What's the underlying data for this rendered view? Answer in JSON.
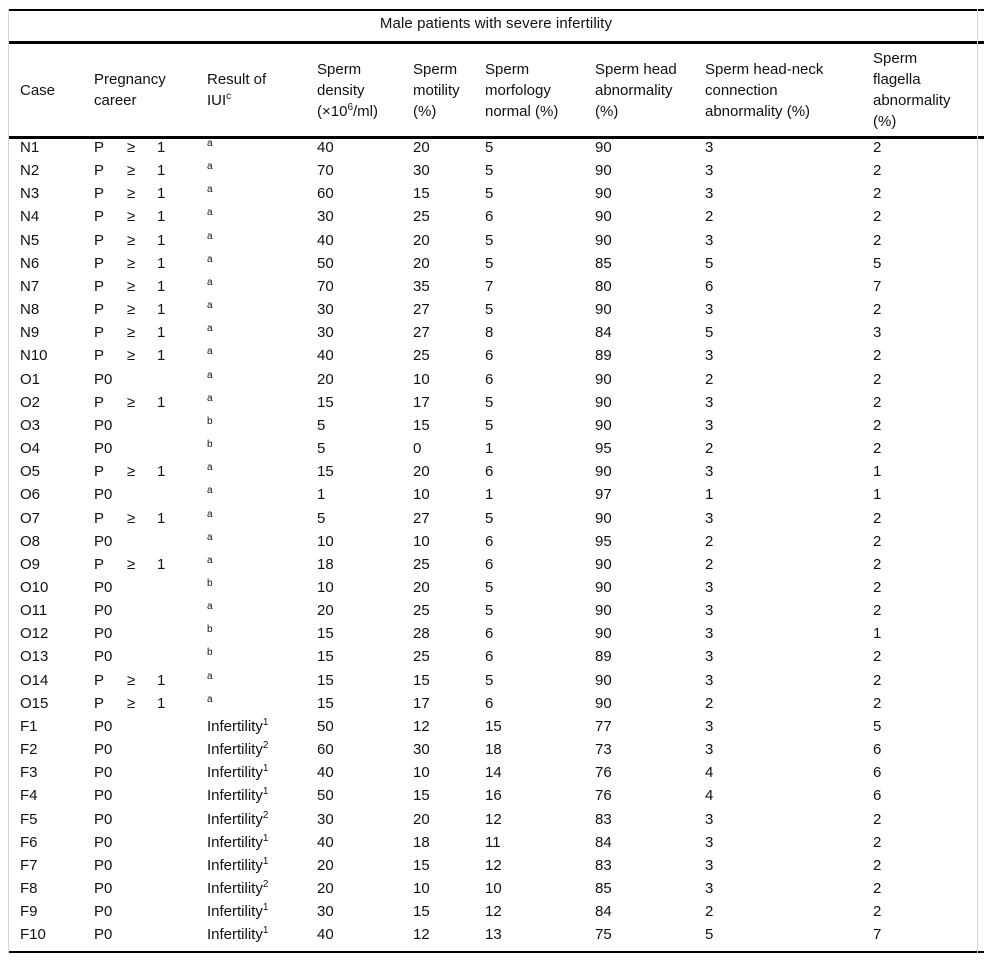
{
  "table": {
    "title": "Male patients with severe infertility",
    "headers": [
      {
        "lines": [
          {
            "t": "Case"
          }
        ]
      },
      {
        "lines": [
          {
            "t": "Pregnancy"
          },
          {
            "t": "career"
          }
        ]
      },
      {
        "lines": [
          {
            "t": "Result of"
          },
          {
            "t": "IUI",
            "sup": "c"
          }
        ]
      },
      {
        "lines": [
          {
            "t": "Sperm"
          },
          {
            "t": "density"
          },
          {
            "t": "(×10",
            "sup": "6",
            "t2": "/ml)"
          }
        ]
      },
      {
        "lines": [
          {
            "t": "Sperm"
          },
          {
            "t": "motility"
          },
          {
            "t": "(%)"
          }
        ]
      },
      {
        "lines": [
          {
            "t": "Sperm"
          },
          {
            "t": "morfology"
          },
          {
            "t": "normal (%)"
          }
        ]
      },
      {
        "lines": [
          {
            "t": "Sperm head"
          },
          {
            "t": "abnormality"
          },
          {
            "t": "(%)"
          }
        ]
      },
      {
        "lines": [
          {
            "t": "Sperm head-neck"
          },
          {
            "t": "connection"
          },
          {
            "t": "abnormality (%)"
          }
        ]
      },
      {
        "lines": [
          {
            "t": "Sperm"
          },
          {
            "t": "flagella"
          },
          {
            "t": "abnormality"
          },
          {
            "t": "(%)"
          }
        ]
      }
    ],
    "rows": [
      {
        "case": "N1",
        "pregnancy": [
          "P",
          "≥",
          "1"
        ],
        "iui": {
          "text": "",
          "sup": "a"
        },
        "density": 40,
        "motility": 20,
        "morfology": 5,
        "head": 90,
        "headneck": 3,
        "flagella": 2
      },
      {
        "case": "N2",
        "pregnancy": [
          "P",
          "≥",
          "1"
        ],
        "iui": {
          "text": "",
          "sup": "a"
        },
        "density": 70,
        "motility": 30,
        "morfology": 5,
        "head": 90,
        "headneck": 3,
        "flagella": 2
      },
      {
        "case": "N3",
        "pregnancy": [
          "P",
          "≥",
          "1"
        ],
        "iui": {
          "text": "",
          "sup": "a"
        },
        "density": 60,
        "motility": 15,
        "morfology": 5,
        "head": 90,
        "headneck": 3,
        "flagella": 2
      },
      {
        "case": "N4",
        "pregnancy": [
          "P",
          "≥",
          "1"
        ],
        "iui": {
          "text": "",
          "sup": "a"
        },
        "density": 30,
        "motility": 25,
        "morfology": 6,
        "head": 90,
        "headneck": 2,
        "flagella": 2
      },
      {
        "case": "N5",
        "pregnancy": [
          "P",
          "≥",
          "1"
        ],
        "iui": {
          "text": "",
          "sup": "a"
        },
        "density": 40,
        "motility": 20,
        "morfology": 5,
        "head": 90,
        "headneck": 3,
        "flagella": 2
      },
      {
        "case": "N6",
        "pregnancy": [
          "P",
          "≥",
          "1"
        ],
        "iui": {
          "text": "",
          "sup": "a"
        },
        "density": 50,
        "motility": 20,
        "morfology": 5,
        "head": 85,
        "headneck": 5,
        "flagella": 5
      },
      {
        "case": "N7",
        "pregnancy": [
          "P",
          "≥",
          "1"
        ],
        "iui": {
          "text": "",
          "sup": "a"
        },
        "density": 70,
        "motility": 35,
        "morfology": 7,
        "head": 80,
        "headneck": 6,
        "flagella": 7
      },
      {
        "case": "N8",
        "pregnancy": [
          "P",
          "≥",
          "1"
        ],
        "iui": {
          "text": "",
          "sup": "a"
        },
        "density": 30,
        "motility": 27,
        "morfology": 5,
        "head": 90,
        "headneck": 3,
        "flagella": 2
      },
      {
        "case": "N9",
        "pregnancy": [
          "P",
          "≥",
          "1"
        ],
        "iui": {
          "text": "",
          "sup": "a"
        },
        "density": 30,
        "motility": 27,
        "morfology": 8,
        "head": 84,
        "headneck": 5,
        "flagella": 3
      },
      {
        "case": "N10",
        "pregnancy": [
          "P",
          "≥",
          "1"
        ],
        "iui": {
          "text": "",
          "sup": "a"
        },
        "density": 40,
        "motility": 25,
        "morfology": 6,
        "head": 89,
        "headneck": 3,
        "flagella": 2
      },
      {
        "case": "O1",
        "pregnancy": [
          "P0"
        ],
        "iui": {
          "text": "",
          "sup": "a"
        },
        "density": 20,
        "motility": 10,
        "morfology": 6,
        "head": 90,
        "headneck": 2,
        "flagella": 2
      },
      {
        "case": "O2",
        "pregnancy": [
          "P",
          "≥",
          "1"
        ],
        "iui": {
          "text": "",
          "sup": "a"
        },
        "density": 15,
        "motility": 17,
        "morfology": 5,
        "head": 90,
        "headneck": 3,
        "flagella": 2
      },
      {
        "case": "O3",
        "pregnancy": [
          "P0"
        ],
        "iui": {
          "text": "",
          "sup": "b"
        },
        "density": 5,
        "motility": 15,
        "morfology": 5,
        "head": 90,
        "headneck": 3,
        "flagella": 2
      },
      {
        "case": "O4",
        "pregnancy": [
          "P0"
        ],
        "iui": {
          "text": "",
          "sup": "b"
        },
        "density": 5,
        "motility": 0,
        "morfology": 1,
        "head": 95,
        "headneck": 2,
        "flagella": 2
      },
      {
        "case": "O5",
        "pregnancy": [
          "P",
          "≥",
          "1"
        ],
        "iui": {
          "text": "",
          "sup": "a"
        },
        "density": 15,
        "motility": 20,
        "morfology": 6,
        "head": 90,
        "headneck": 3,
        "flagella": 1
      },
      {
        "case": "O6",
        "pregnancy": [
          "P0"
        ],
        "iui": {
          "text": "",
          "sup": "a"
        },
        "density": 1,
        "motility": 10,
        "morfology": 1,
        "head": 97,
        "headneck": 1,
        "flagella": 1
      },
      {
        "case": "O7",
        "pregnancy": [
          "P",
          "≥",
          "1"
        ],
        "iui": {
          "text": "",
          "sup": "a"
        },
        "density": 5,
        "motility": 27,
        "morfology": 5,
        "head": 90,
        "headneck": 3,
        "flagella": 2
      },
      {
        "case": "O8",
        "pregnancy": [
          "P0"
        ],
        "iui": {
          "text": "",
          "sup": "a"
        },
        "density": 10,
        "motility": 10,
        "morfology": 6,
        "head": 95,
        "headneck": 2,
        "flagella": 2
      },
      {
        "case": "O9",
        "pregnancy": [
          "P",
          "≥",
          "1"
        ],
        "iui": {
          "text": "",
          "sup": "a"
        },
        "density": 18,
        "motility": 25,
        "morfology": 6,
        "head": 90,
        "headneck": 2,
        "flagella": 2
      },
      {
        "case": "O10",
        "pregnancy": [
          "P0"
        ],
        "iui": {
          "text": "",
          "sup": "b"
        },
        "density": 10,
        "motility": 20,
        "morfology": 5,
        "head": 90,
        "headneck": 3,
        "flagella": 2
      },
      {
        "case": "O11",
        "pregnancy": [
          "P0"
        ],
        "iui": {
          "text": "",
          "sup": "a"
        },
        "density": 20,
        "motility": 25,
        "morfology": 5,
        "head": 90,
        "headneck": 3,
        "flagella": 2
      },
      {
        "case": "O12",
        "pregnancy": [
          "P0"
        ],
        "iui": {
          "text": "",
          "sup": "b"
        },
        "density": 15,
        "motility": 28,
        "morfology": 6,
        "head": 90,
        "headneck": 3,
        "flagella": 1
      },
      {
        "case": "O13",
        "pregnancy": [
          "P0"
        ],
        "iui": {
          "text": "",
          "sup": "b"
        },
        "density": 15,
        "motility": 25,
        "morfology": 6,
        "head": 89,
        "headneck": 3,
        "flagella": 2
      },
      {
        "case": "O14",
        "pregnancy": [
          "P",
          "≥",
          "1"
        ],
        "iui": {
          "text": "",
          "sup": "a"
        },
        "density": 15,
        "motility": 15,
        "morfology": 5,
        "head": 90,
        "headneck": 3,
        "flagella": 2
      },
      {
        "case": "O15",
        "pregnancy": [
          "P",
          "≥",
          "1"
        ],
        "iui": {
          "text": "",
          "sup": "a"
        },
        "density": 15,
        "motility": 17,
        "morfology": 6,
        "head": 90,
        "headneck": 2,
        "flagella": 2
      },
      {
        "case": "F1",
        "pregnancy": [
          "P0"
        ],
        "iui": {
          "text": "Infertility",
          "sup": "1"
        },
        "density": 50,
        "motility": 12,
        "morfology": 15,
        "head": 77,
        "headneck": 3,
        "flagella": 5
      },
      {
        "case": "F2",
        "pregnancy": [
          "P0"
        ],
        "iui": {
          "text": "Infertility",
          "sup": "2"
        },
        "density": 60,
        "motility": 30,
        "morfology": 18,
        "head": 73,
        "headneck": 3,
        "flagella": 6
      },
      {
        "case": "F3",
        "pregnancy": [
          "P0"
        ],
        "iui": {
          "text": "Infertility",
          "sup": "1"
        },
        "density": 40,
        "motility": 10,
        "morfology": 14,
        "head": 76,
        "headneck": 4,
        "flagella": 6
      },
      {
        "case": "F4",
        "pregnancy": [
          "P0"
        ],
        "iui": {
          "text": "Infertility",
          "sup": "1"
        },
        "density": 50,
        "motility": 15,
        "morfology": 16,
        "head": 76,
        "headneck": 4,
        "flagella": 6
      },
      {
        "case": "F5",
        "pregnancy": [
          "P0"
        ],
        "iui": {
          "text": "Infertility",
          "sup": "2"
        },
        "density": 30,
        "motility": 20,
        "morfology": 12,
        "head": 83,
        "headneck": 3,
        "flagella": 2
      },
      {
        "case": "F6",
        "pregnancy": [
          "P0"
        ],
        "iui": {
          "text": "Infertility",
          "sup": "1"
        },
        "density": 40,
        "motility": 18,
        "morfology": 11,
        "head": 84,
        "headneck": 3,
        "flagella": 2
      },
      {
        "case": "F7",
        "pregnancy": [
          "P0"
        ],
        "iui": {
          "text": "Infertility",
          "sup": "1"
        },
        "density": 20,
        "motility": 15,
        "morfology": 12,
        "head": 83,
        "headneck": 3,
        "flagella": 2
      },
      {
        "case": "F8",
        "pregnancy": [
          "P0"
        ],
        "iui": {
          "text": "Infertility",
          "sup": "2"
        },
        "density": 20,
        "motility": 10,
        "morfology": 10,
        "head": 85,
        "headneck": 3,
        "flagella": 2
      },
      {
        "case": "F9",
        "pregnancy": [
          "P0"
        ],
        "iui": {
          "text": "Infertility",
          "sup": "1"
        },
        "density": 30,
        "motility": 15,
        "morfology": 12,
        "head": 84,
        "headneck": 2,
        "flagella": 2
      },
      {
        "case": "F10",
        "pregnancy": [
          "P0"
        ],
        "iui": {
          "text": "Infertility",
          "sup": "1"
        },
        "density": 40,
        "motility": 12,
        "morfology": 13,
        "head": 75,
        "headneck": 5,
        "flagella": 7
      }
    ]
  }
}
